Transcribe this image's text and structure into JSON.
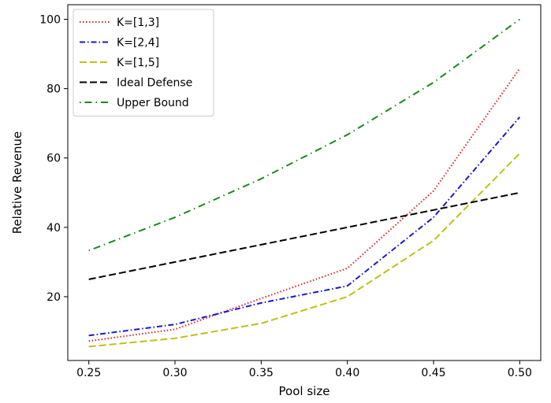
{
  "chart_data": {
    "type": "line",
    "title": "",
    "xlabel": "Pool size",
    "ylabel": "Relative Revenue",
    "x": [
      0.25,
      0.3,
      0.35,
      0.4,
      0.45,
      0.5
    ],
    "xticks": [
      "0.25",
      "0.30",
      "0.35",
      "0.40",
      "0.45",
      "0.50"
    ],
    "yticks": [
      "20",
      "40",
      "60",
      "80",
      "100"
    ],
    "xlim": [
      0.2378,
      0.5122
    ],
    "ylim": [
      1.6,
      104.2
    ],
    "grid": false,
    "legend_position": "top-left",
    "series": [
      {
        "name": "K=[1,3]",
        "color": "#d62728",
        "style": "dotted",
        "values": [
          7.2,
          10.6,
          19.5,
          28.2,
          50.5,
          85.8
        ]
      },
      {
        "name": "K=[2,4]",
        "color": "#1a1acc",
        "style": "dashdot",
        "values": [
          8.8,
          12.0,
          18.2,
          23.1,
          42.9,
          71.8
        ]
      },
      {
        "name": "K=[1,5]",
        "color": "#bfbf19",
        "style": "dashed",
        "values": [
          5.6,
          8.0,
          12.3,
          20.0,
          36.2,
          61.3
        ]
      },
      {
        "name": "Ideal Defense",
        "color": "#000000",
        "style": "dashed",
        "values": [
          25.0,
          30.0,
          35.0,
          40.0,
          45.0,
          50.0
        ]
      },
      {
        "name": "Upper Bound",
        "color": "#1a8a1a",
        "style": "loosedashdot",
        "values": [
          33.3,
          42.9,
          54.0,
          66.7,
          81.8,
          100.0
        ]
      }
    ]
  }
}
